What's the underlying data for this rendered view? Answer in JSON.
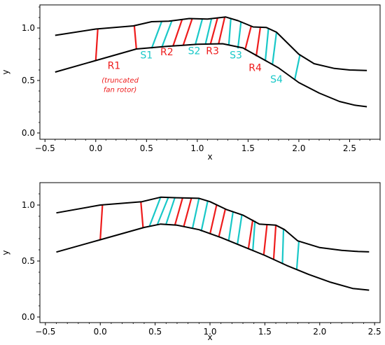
{
  "colors": {
    "rotor": "#ee1c1c",
    "stator": "#19c8c8",
    "wall": "#000000"
  },
  "panels": [
    {
      "id": "top",
      "xlabel": "x",
      "ylabel": "y",
      "xlim": [
        -0.55,
        2.8
      ],
      "ylim": [
        -0.06,
        1.22
      ],
      "xticks": [
        -0.5,
        0.0,
        0.5,
        1.0,
        1.5,
        2.0,
        2.5
      ],
      "xtick_labels": [
        "−0.5",
        "0.0",
        "0.5",
        "1.0",
        "1.5",
        "2.0",
        "2.5"
      ],
      "yticks": [
        0.0,
        0.5,
        1.0
      ],
      "ytick_labels": [
        "0.0",
        "0.5",
        "1.0"
      ],
      "outer_wall": [
        [
          -0.4,
          0.93
        ],
        [
          0.0,
          0.99
        ],
        [
          0.37,
          1.02
        ],
        [
          0.55,
          1.06
        ],
        [
          0.72,
          1.065
        ],
        [
          0.92,
          1.09
        ],
        [
          1.1,
          1.085
        ],
        [
          1.28,
          1.105
        ],
        [
          1.4,
          1.07
        ],
        [
          1.55,
          1.01
        ],
        [
          1.68,
          1.005
        ],
        [
          1.78,
          0.96
        ],
        [
          2.0,
          0.75
        ],
        [
          2.15,
          0.66
        ],
        [
          2.35,
          0.615
        ],
        [
          2.5,
          0.6
        ],
        [
          2.67,
          0.595
        ]
      ],
      "inner_wall": [
        [
          -0.4,
          0.58
        ],
        [
          0.0,
          0.69
        ],
        [
          0.4,
          0.8
        ],
        [
          0.7,
          0.825
        ],
        [
          1.0,
          0.845
        ],
        [
          1.25,
          0.85
        ],
        [
          1.45,
          0.81
        ],
        [
          1.8,
          0.62
        ],
        [
          2.0,
          0.48
        ],
        [
          2.2,
          0.38
        ],
        [
          2.4,
          0.3
        ],
        [
          2.55,
          0.265
        ],
        [
          2.67,
          0.25
        ]
      ],
      "blades": [
        {
          "k": "r",
          "x1": 0.0,
          "y1": 0.69,
          "x2": 0.02,
          "y2": 0.99
        },
        {
          "k": "r",
          "x1": 0.4,
          "y1": 0.8,
          "x2": 0.38,
          "y2": 1.02
        },
        {
          "k": "s",
          "x1": 0.55,
          "y1": 0.805,
          "x2": 0.65,
          "y2": 1.063
        },
        {
          "k": "s",
          "x1": 0.65,
          "y1": 0.815,
          "x2": 0.75,
          "y2": 1.07
        },
        {
          "k": "r",
          "x1": 0.76,
          "y1": 0.825,
          "x2": 0.85,
          "y2": 1.08
        },
        {
          "k": "r",
          "x1": 0.86,
          "y1": 0.832,
          "x2": 0.95,
          "y2": 1.09
        },
        {
          "k": "s",
          "x1": 0.98,
          "y1": 0.84,
          "x2": 1.05,
          "y2": 1.087
        },
        {
          "k": "s",
          "x1": 1.08,
          "y1": 0.845,
          "x2": 1.14,
          "y2": 1.09
        },
        {
          "k": "r",
          "x1": 1.13,
          "y1": 0.848,
          "x2": 1.2,
          "y2": 1.097
        },
        {
          "k": "r",
          "x1": 1.21,
          "y1": 0.85,
          "x2": 1.27,
          "y2": 1.102
        },
        {
          "k": "s",
          "x1": 1.31,
          "y1": 0.835,
          "x2": 1.33,
          "y2": 1.09
        },
        {
          "k": "s",
          "x1": 1.4,
          "y1": 0.805,
          "x2": 1.43,
          "y2": 1.055
        },
        {
          "k": "r",
          "x1": 1.47,
          "y1": 0.79,
          "x2": 1.53,
          "y2": 1.015
        },
        {
          "k": "r",
          "x1": 1.58,
          "y1": 0.73,
          "x2": 1.62,
          "y2": 1.0
        },
        {
          "k": "s",
          "x1": 1.67,
          "y1": 0.69,
          "x2": 1.7,
          "y2": 0.99
        },
        {
          "k": "s",
          "x1": 1.74,
          "y1": 0.655,
          "x2": 1.78,
          "y2": 0.96
        },
        {
          "k": "s",
          "x1": 1.96,
          "y1": 0.51,
          "x2": 2.01,
          "y2": 0.74
        }
      ],
      "annotations": [
        {
          "text": "R1",
          "kind": "rotor",
          "x": 0.18,
          "y": 0.61,
          "style": "ann"
        },
        {
          "text": "(truncated",
          "kind": "rotor",
          "x": 0.24,
          "y": 0.48,
          "style": "note"
        },
        {
          "text": "fan rotor)",
          "kind": "rotor",
          "x": 0.24,
          "y": 0.39,
          "style": "note"
        },
        {
          "text": "S1",
          "kind": "stator",
          "x": 0.5,
          "y": 0.71,
          "style": "ann"
        },
        {
          "text": "R2",
          "kind": "rotor",
          "x": 0.7,
          "y": 0.74,
          "style": "ann"
        },
        {
          "text": "S2",
          "kind": "stator",
          "x": 0.97,
          "y": 0.75,
          "style": "ann"
        },
        {
          "text": "R3",
          "kind": "rotor",
          "x": 1.15,
          "y": 0.75,
          "style": "ann"
        },
        {
          "text": "S3",
          "kind": "stator",
          "x": 1.38,
          "y": 0.71,
          "style": "ann"
        },
        {
          "text": "R4",
          "kind": "rotor",
          "x": 1.57,
          "y": 0.59,
          "style": "ann"
        },
        {
          "text": "S4",
          "kind": "stator",
          "x": 1.78,
          "y": 0.48,
          "style": "ann"
        }
      ]
    },
    {
      "id": "bottom",
      "xlabel": "x",
      "ylabel": "y",
      "xlim": [
        -0.55,
        2.55
      ],
      "ylim": [
        -0.05,
        1.2
      ],
      "xticks": [
        -0.5,
        0.0,
        0.5,
        1.0,
        1.5,
        2.0,
        2.5
      ],
      "xtick_labels": [
        "−0.5",
        "0.0",
        "0.5",
        "1.0",
        "1.5",
        "2.0",
        "2.5"
      ],
      "yticks": [
        0.0,
        0.5,
        1.0
      ],
      "ytick_labels": [
        "0.0",
        "0.5",
        "1.0"
      ],
      "outer_wall": [
        [
          -0.4,
          0.93
        ],
        [
          0.0,
          1.0
        ],
        [
          0.38,
          1.03
        ],
        [
          0.55,
          1.07
        ],
        [
          0.7,
          1.065
        ],
        [
          0.9,
          1.06
        ],
        [
          1.0,
          1.03
        ],
        [
          1.15,
          0.96
        ],
        [
          1.3,
          0.91
        ],
        [
          1.45,
          0.83
        ],
        [
          1.6,
          0.82
        ],
        [
          1.68,
          0.78
        ],
        [
          1.8,
          0.68
        ],
        [
          2.0,
          0.62
        ],
        [
          2.2,
          0.595
        ],
        [
          2.35,
          0.585
        ],
        [
          2.45,
          0.582
        ]
      ],
      "inner_wall": [
        [
          -0.4,
          0.58
        ],
        [
          0.0,
          0.69
        ],
        [
          0.4,
          0.8
        ],
        [
          0.55,
          0.83
        ],
        [
          0.7,
          0.82
        ],
        [
          0.9,
          0.78
        ],
        [
          1.1,
          0.71
        ],
        [
          1.3,
          0.63
        ],
        [
          1.5,
          0.55
        ],
        [
          1.7,
          0.46
        ],
        [
          1.9,
          0.38
        ],
        [
          2.1,
          0.31
        ],
        [
          2.3,
          0.255
        ],
        [
          2.45,
          0.24
        ]
      ],
      "blades": [
        {
          "k": "r",
          "x1": 0.0,
          "y1": 0.69,
          "x2": 0.02,
          "y2": 1.0
        },
        {
          "k": "r",
          "x1": 0.39,
          "y1": 0.8,
          "x2": 0.37,
          "y2": 1.03
        },
        {
          "k": "s",
          "x1": 0.45,
          "y1": 0.815,
          "x2": 0.55,
          "y2": 1.07
        },
        {
          "k": "s",
          "x1": 0.52,
          "y1": 0.825,
          "x2": 0.62,
          "y2": 1.068
        },
        {
          "k": "s",
          "x1": 0.6,
          "y1": 0.83,
          "x2": 0.68,
          "y2": 1.066
        },
        {
          "k": "r",
          "x1": 0.68,
          "y1": 0.82,
          "x2": 0.75,
          "y2": 1.063
        },
        {
          "k": "r",
          "x1": 0.76,
          "y1": 0.805,
          "x2": 0.83,
          "y2": 1.06
        },
        {
          "k": "s",
          "x1": 0.84,
          "y1": 0.79,
          "x2": 0.9,
          "y2": 1.06
        },
        {
          "k": "s",
          "x1": 0.92,
          "y1": 0.765,
          "x2": 0.98,
          "y2": 1.04
        },
        {
          "k": "r",
          "x1": 1.0,
          "y1": 0.74,
          "x2": 1.06,
          "y2": 1.0
        },
        {
          "k": "r",
          "x1": 1.08,
          "y1": 0.715,
          "x2": 1.14,
          "y2": 0.965
        },
        {
          "k": "s",
          "x1": 1.17,
          "y1": 0.68,
          "x2": 1.21,
          "y2": 0.94
        },
        {
          "k": "s",
          "x1": 1.25,
          "y1": 0.65,
          "x2": 1.29,
          "y2": 0.91
        },
        {
          "k": "r",
          "x1": 1.35,
          "y1": 0.61,
          "x2": 1.39,
          "y2": 0.87
        },
        {
          "k": "s",
          "x1": 1.39,
          "y1": 0.59,
          "x2": 1.41,
          "y2": 0.86
        },
        {
          "k": "r",
          "x1": 1.49,
          "y1": 0.555,
          "x2": 1.52,
          "y2": 0.83
        },
        {
          "k": "r",
          "x1": 1.58,
          "y1": 0.515,
          "x2": 1.6,
          "y2": 0.82
        },
        {
          "k": "s",
          "x1": 1.66,
          "y1": 0.475,
          "x2": 1.67,
          "y2": 0.785
        },
        {
          "k": "s",
          "x1": 1.79,
          "y1": 0.42,
          "x2": 1.81,
          "y2": 0.68
        }
      ],
      "annotations": []
    }
  ]
}
